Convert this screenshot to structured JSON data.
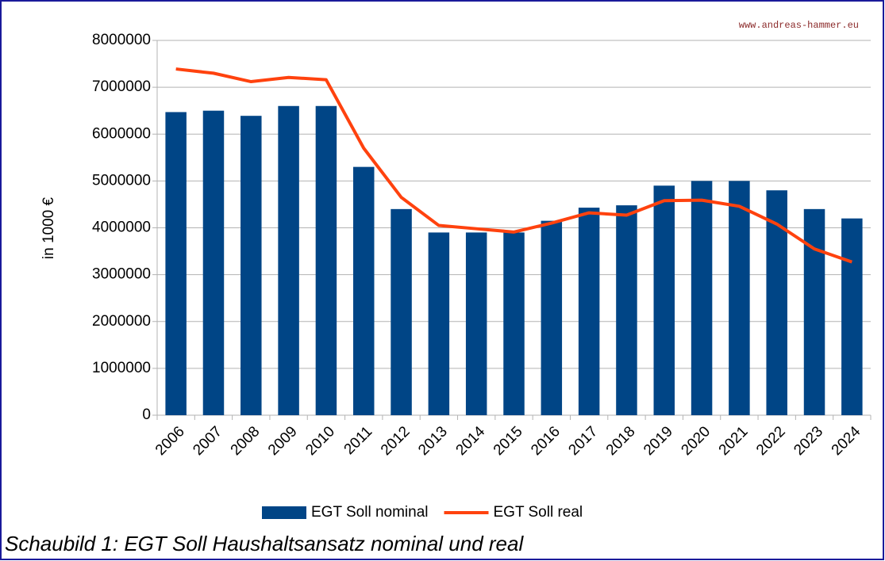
{
  "chart_data": {
    "type": "bar_line",
    "watermark": "www.andreas-hammer.eu",
    "y_label": "in 1000 €",
    "caption": "Schaubild 1: EGT Soll Haushaltsansatz nominal und real",
    "categories": [
      "2006",
      "2007",
      "2008",
      "2009",
      "2010",
      "2011",
      "2012",
      "2013",
      "2014",
      "2015",
      "2016",
      "2017",
      "2018",
      "2019",
      "2020",
      "2021",
      "2022",
      "2023",
      "2024"
    ],
    "series": [
      {
        "name": "EGT Soll nominal",
        "type": "bar",
        "color": "#004586",
        "values": [
          6470000,
          6500000,
          6390000,
          6600000,
          6600000,
          5300000,
          4400000,
          3900000,
          3900000,
          3900000,
          4150000,
          4430000,
          4480000,
          4900000,
          5000000,
          5000000,
          4800000,
          4400000,
          4200000
        ]
      },
      {
        "name": "EGT Soll real",
        "type": "line",
        "color": "#ff420e",
        "values": [
          7390000,
          7300000,
          7120000,
          7210000,
          7160000,
          5700000,
          4650000,
          4050000,
          3980000,
          3910000,
          4100000,
          4320000,
          4270000,
          4580000,
          4590000,
          4460000,
          4080000,
          3550000,
          3270000
        ]
      }
    ],
    "ylim": [
      0,
      8000000
    ],
    "yticks": [
      0,
      1000000,
      2000000,
      3000000,
      4000000,
      5000000,
      6000000,
      7000000,
      8000000
    ],
    "grid": true,
    "legend": "bottom"
  }
}
